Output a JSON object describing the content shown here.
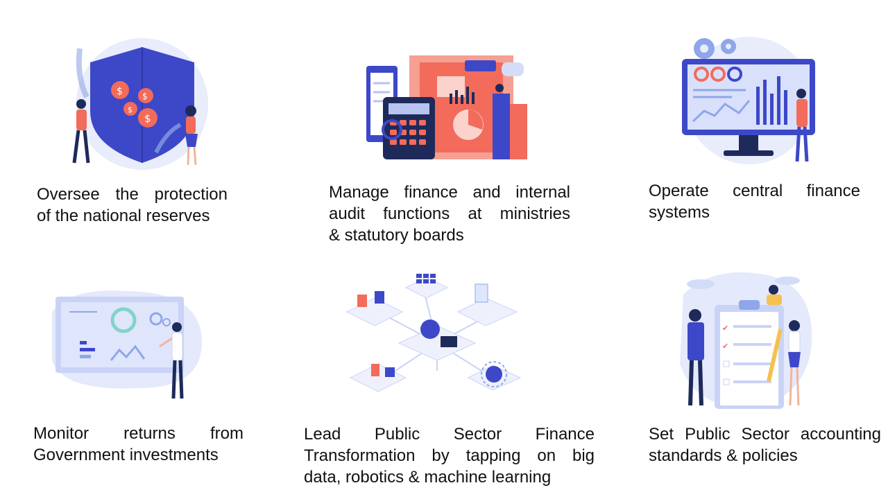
{
  "cards": [
    {
      "caption_lines": [
        "Oversee the protection",
        "of the national reserves"
      ],
      "icon": "shield-reserves-icon"
    },
    {
      "caption_lines": [
        "Manage finance and internal",
        "audit functions at ministries",
        "& statutory boards"
      ],
      "icon": "finance-audit-icon"
    },
    {
      "caption_lines": [
        "Operate central finance",
        "systems"
      ],
      "icon": "finance-dashboard-icon"
    },
    {
      "caption_lines": [
        "Monitor returns from",
        "Government investments"
      ],
      "icon": "investment-monitor-icon"
    },
    {
      "caption_lines": [
        "Lead Public Sector Finance",
        "Transformation by tapping on big",
        "data, robotics & machine learning"
      ],
      "icon": "digital-transformation-icon"
    },
    {
      "caption_lines": [
        "Set Public Sector accounting",
        "standards & policies"
      ],
      "icon": "standards-checklist-icon"
    }
  ],
  "colors": {
    "primary_blue": "#3d48c8",
    "coral": "#f26b5b",
    "light_blue": "#e4e9fb",
    "dark_navy": "#1e2a5a"
  }
}
